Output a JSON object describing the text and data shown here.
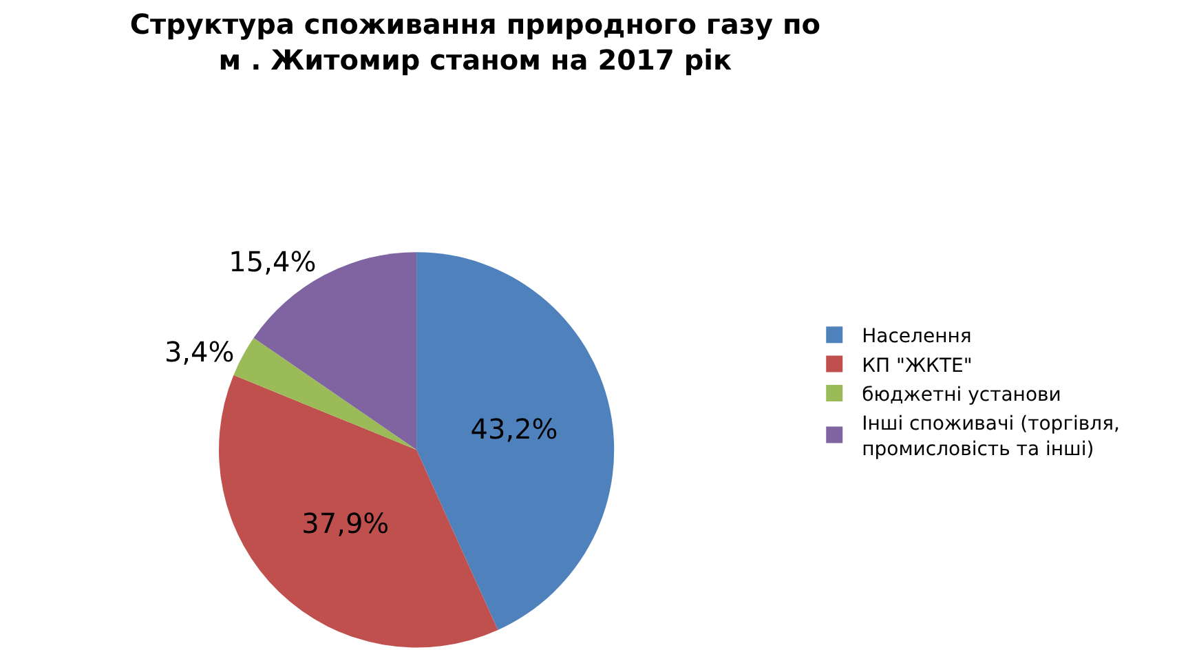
{
  "chart_data": {
    "type": "pie",
    "title": "Структура споживання природного газу по м . Житомир станом на 2017 рік",
    "categories": [
      "Населення",
      "КП \"ЖКТЕ\"",
      "бюджетні установи",
      "Інші споживачі (торгівля, промисловість та інші)"
    ],
    "values": [
      43.2,
      37.9,
      3.4,
      15.4
    ],
    "value_labels": [
      "43,2%",
      "37,9%",
      "3,4%",
      "15,4%"
    ],
    "colors": [
      "#4f81bd",
      "#c0504d",
      "#9bbb59",
      "#8064a2"
    ],
    "legend": "right"
  }
}
